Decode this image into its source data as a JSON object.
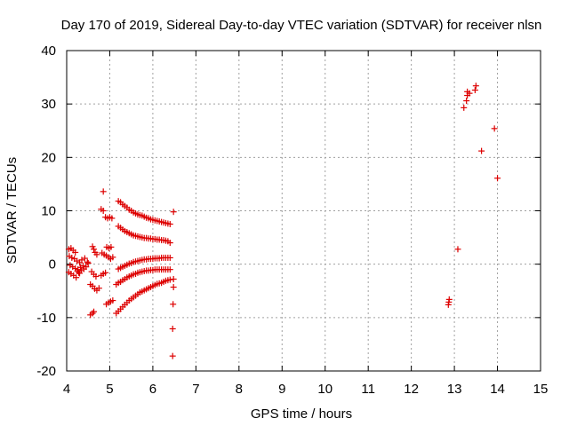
{
  "chart_data": {
    "type": "scatter",
    "title": "Day 170 of 2019, Sidereal Day-to-day VTEC variation (SDTVAR) for receiver nlsn",
    "xlabel": "GPS time / hours",
    "ylabel": "SDTVAR / TECUs",
    "xlim": [
      4,
      15
    ],
    "ylim": [
      -20,
      40
    ],
    "xticks": [
      4,
      5,
      6,
      7,
      8,
      9,
      10,
      11,
      12,
      13,
      14,
      15
    ],
    "yticks": [
      -20,
      -10,
      0,
      10,
      20,
      30,
      40
    ],
    "xtick_labels": [
      "4",
      "5",
      "6",
      "7",
      "8",
      "9",
      "10",
      "11",
      "12",
      "13",
      "14",
      "15"
    ],
    "ytick_labels": [
      "-20",
      "-10",
      "0",
      "10",
      "20",
      "30",
      "40"
    ],
    "grid": true,
    "marker": "+",
    "color": "#dd0000",
    "series": [
      {
        "name": "SDTVAR",
        "points": [
          [
            4.05,
            2.8
          ],
          [
            4.1,
            3.0
          ],
          [
            4.15,
            2.6
          ],
          [
            4.2,
            2.2
          ],
          [
            4.06,
            1.5
          ],
          [
            4.12,
            1.2
          ],
          [
            4.18,
            1.0
          ],
          [
            4.24,
            0.6
          ],
          [
            4.3,
            0.3
          ],
          [
            4.08,
            -0.2
          ],
          [
            4.14,
            -0.5
          ],
          [
            4.2,
            -0.8
          ],
          [
            4.26,
            -1.0
          ],
          [
            4.32,
            -0.6
          ],
          [
            4.38,
            -0.3
          ],
          [
            4.05,
            -1.5
          ],
          [
            4.1,
            -1.8
          ],
          [
            4.16,
            -2.1
          ],
          [
            4.22,
            -2.5
          ],
          [
            4.28,
            -1.6
          ],
          [
            4.34,
            -1.2
          ],
          [
            4.4,
            -0.9
          ],
          [
            4.45,
            -0.5
          ],
          [
            4.5,
            0.2
          ],
          [
            4.35,
            0.8
          ],
          [
            4.42,
            1.1
          ],
          [
            4.48,
            0.4
          ],
          [
            4.25,
            -1.3
          ],
          [
            4.3,
            -1.7
          ],
          [
            4.55,
            -9.5
          ],
          [
            4.6,
            -9.2
          ],
          [
            4.63,
            -8.9
          ],
          [
            4.55,
            -3.8
          ],
          [
            4.6,
            -4.1
          ],
          [
            4.65,
            -4.6
          ],
          [
            4.7,
            -4.9
          ],
          [
            4.75,
            -4.5
          ],
          [
            4.6,
            3.3
          ],
          [
            4.63,
            2.8
          ],
          [
            4.66,
            2.2
          ],
          [
            4.7,
            1.8
          ],
          [
            4.58,
            -1.4
          ],
          [
            4.63,
            -1.9
          ],
          [
            4.68,
            -2.3
          ],
          [
            4.85,
            13.6
          ],
          [
            4.8,
            10.3
          ],
          [
            4.85,
            10.0
          ],
          [
            4.9,
            8.8
          ],
          [
            4.95,
            8.6
          ],
          [
            5.0,
            8.8
          ],
          [
            5.05,
            8.6
          ],
          [
            4.82,
            2.1
          ],
          [
            4.87,
            1.8
          ],
          [
            4.92,
            1.6
          ],
          [
            4.97,
            1.3
          ],
          [
            5.02,
            1.0
          ],
          [
            5.07,
            1.3
          ],
          [
            4.93,
            3.2
          ],
          [
            4.98,
            3.0
          ],
          [
            5.03,
            3.2
          ],
          [
            4.8,
            -2.1
          ],
          [
            4.85,
            -1.8
          ],
          [
            4.9,
            -1.6
          ],
          [
            4.92,
            -7.5
          ],
          [
            4.97,
            -7.2
          ],
          [
            5.02,
            -7.0
          ],
          [
            5.07,
            -6.8
          ],
          [
            5.2,
            11.8
          ],
          [
            5.25,
            11.6
          ],
          [
            5.3,
            11.2
          ],
          [
            5.35,
            10.9
          ],
          [
            5.4,
            10.6
          ],
          [
            5.45,
            10.2
          ],
          [
            5.5,
            10.0
          ],
          [
            5.55,
            9.7
          ],
          [
            5.6,
            9.5
          ],
          [
            5.65,
            9.3
          ],
          [
            5.7,
            9.2
          ],
          [
            5.75,
            9.1
          ],
          [
            5.8,
            8.9
          ],
          [
            5.85,
            8.7
          ],
          [
            5.9,
            8.6
          ],
          [
            5.95,
            8.4
          ],
          [
            6.0,
            8.3
          ],
          [
            6.05,
            8.2
          ],
          [
            6.1,
            8.1
          ],
          [
            6.15,
            8.0
          ],
          [
            6.2,
            7.9
          ],
          [
            6.25,
            7.8
          ],
          [
            6.3,
            7.7
          ],
          [
            6.35,
            7.6
          ],
          [
            6.4,
            7.5
          ],
          [
            5.2,
            7.1
          ],
          [
            5.25,
            6.8
          ],
          [
            5.3,
            6.5
          ],
          [
            5.35,
            6.2
          ],
          [
            5.4,
            6.0
          ],
          [
            5.45,
            5.8
          ],
          [
            5.5,
            5.6
          ],
          [
            5.55,
            5.4
          ],
          [
            5.6,
            5.3
          ],
          [
            5.65,
            5.2
          ],
          [
            5.7,
            5.1
          ],
          [
            5.75,
            5.0
          ],
          [
            5.8,
            4.9
          ],
          [
            5.85,
            4.9
          ],
          [
            5.9,
            4.8
          ],
          [
            5.95,
            4.8
          ],
          [
            6.0,
            4.7
          ],
          [
            6.05,
            4.7
          ],
          [
            6.1,
            4.6
          ],
          [
            6.15,
            4.6
          ],
          [
            6.2,
            4.5
          ],
          [
            6.25,
            4.5
          ],
          [
            6.3,
            4.4
          ],
          [
            6.35,
            4.3
          ],
          [
            6.4,
            4.0
          ],
          [
            5.2,
            -0.9
          ],
          [
            5.25,
            -0.7
          ],
          [
            5.3,
            -0.5
          ],
          [
            5.35,
            -0.3
          ],
          [
            5.4,
            -0.1
          ],
          [
            5.45,
            0.1
          ],
          [
            5.5,
            0.2
          ],
          [
            5.55,
            0.4
          ],
          [
            5.6,
            0.5
          ],
          [
            5.65,
            0.6
          ],
          [
            5.7,
            0.7
          ],
          [
            5.75,
            0.8
          ],
          [
            5.8,
            0.9
          ],
          [
            5.85,
            0.9
          ],
          [
            5.9,
            1.0
          ],
          [
            5.95,
            1.0
          ],
          [
            6.0,
            1.0
          ],
          [
            6.05,
            1.1
          ],
          [
            6.1,
            1.1
          ],
          [
            6.15,
            1.1
          ],
          [
            6.2,
            1.2
          ],
          [
            6.25,
            1.2
          ],
          [
            6.3,
            1.2
          ],
          [
            6.35,
            1.2
          ],
          [
            6.4,
            1.2
          ],
          [
            5.15,
            -3.8
          ],
          [
            5.2,
            -3.5
          ],
          [
            5.25,
            -3.3
          ],
          [
            5.3,
            -3.0
          ],
          [
            5.35,
            -2.8
          ],
          [
            5.4,
            -2.5
          ],
          [
            5.45,
            -2.3
          ],
          [
            5.5,
            -2.1
          ],
          [
            5.55,
            -1.9
          ],
          [
            5.6,
            -1.8
          ],
          [
            5.65,
            -1.6
          ],
          [
            5.7,
            -1.5
          ],
          [
            5.75,
            -1.4
          ],
          [
            5.8,
            -1.3
          ],
          [
            5.85,
            -1.2
          ],
          [
            5.9,
            -1.2
          ],
          [
            5.95,
            -1.1
          ],
          [
            6.0,
            -1.1
          ],
          [
            6.05,
            -1.0
          ],
          [
            6.1,
            -1.0
          ],
          [
            6.15,
            -1.0
          ],
          [
            6.2,
            -1.0
          ],
          [
            6.25,
            -1.0
          ],
          [
            6.3,
            -1.0
          ],
          [
            6.35,
            -1.0
          ],
          [
            6.4,
            -1.0
          ],
          [
            5.15,
            -9.2
          ],
          [
            5.2,
            -8.8
          ],
          [
            5.25,
            -8.4
          ],
          [
            5.3,
            -8.0
          ],
          [
            5.35,
            -7.6
          ],
          [
            5.4,
            -7.2
          ],
          [
            5.45,
            -6.8
          ],
          [
            5.5,
            -6.5
          ],
          [
            5.55,
            -6.2
          ],
          [
            5.6,
            -5.9
          ],
          [
            5.65,
            -5.6
          ],
          [
            5.7,
            -5.3
          ],
          [
            5.75,
            -5.1
          ],
          [
            5.8,
            -4.9
          ],
          [
            5.85,
            -4.7
          ],
          [
            5.9,
            -4.5
          ],
          [
            5.95,
            -4.3
          ],
          [
            6.0,
            -4.1
          ],
          [
            6.05,
            -3.9
          ],
          [
            6.1,
            -3.7
          ],
          [
            6.15,
            -3.6
          ],
          [
            6.2,
            -3.5
          ],
          [
            6.25,
            -3.3
          ],
          [
            6.3,
            -3.1
          ],
          [
            6.35,
            -3.0
          ],
          [
            6.4,
            -2.9
          ],
          [
            6.48,
            9.8
          ],
          [
            6.48,
            -2.8
          ],
          [
            6.48,
            -4.3
          ],
          [
            6.47,
            -7.5
          ],
          [
            6.46,
            -12.1
          ],
          [
            6.46,
            -17.2
          ],
          [
            12.88,
            -6.6
          ],
          [
            12.87,
            -7.1
          ],
          [
            12.86,
            -7.6
          ],
          [
            13.08,
            2.8
          ],
          [
            13.22,
            29.3
          ],
          [
            13.28,
            30.6
          ],
          [
            13.3,
            31.6
          ],
          [
            13.3,
            32.3
          ],
          [
            13.35,
            32.0
          ],
          [
            13.48,
            32.6
          ],
          [
            13.5,
            33.4
          ],
          [
            13.63,
            21.2
          ],
          [
            13.93,
            25.4
          ],
          [
            14.0,
            16.1
          ]
        ]
      }
    ]
  }
}
